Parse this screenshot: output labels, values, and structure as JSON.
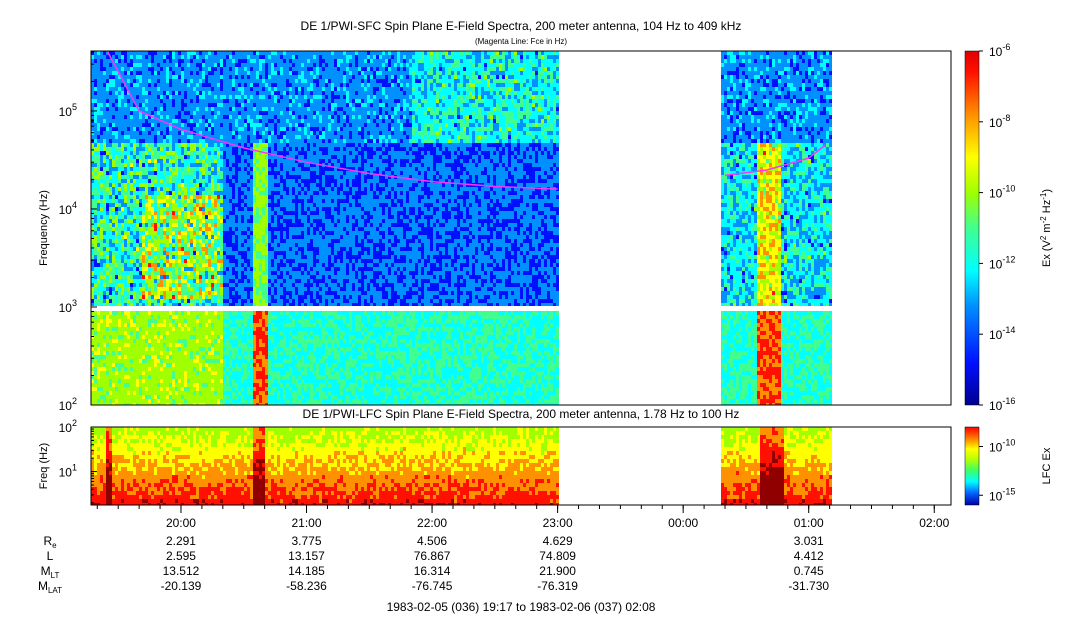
{
  "chart_data": [
    {
      "type": "heatmap",
      "panel": "sfc",
      "title": "DE 1/PWI-SFC  Spin Plane E-Field Spectra, 200 meter antenna, 104 Hz to 409 kHz",
      "subtitle": "(Magenta Line: Fce in Hz)",
      "ylabel": "Frequency (Hz)",
      "yscale": "log",
      "ylim": [
        100,
        409000
      ],
      "yticks": [
        {
          "value": 100,
          "base": "10",
          "exp": "2"
        },
        {
          "value": 1000,
          "base": "10",
          "exp": "3"
        },
        {
          "value": 10000,
          "base": "10",
          "exp": "4"
        },
        {
          "value": 100000,
          "base": "10",
          "exp": "5"
        }
      ],
      "colorbar": {
        "label_prefix": "Ex (V",
        "label_sup1": "2",
        "label_mid": " m",
        "label_sup2": "-2",
        "label_mid2": " Hz",
        "label_sup3": "-1",
        "label_suffix": ")",
        "scale": "log",
        "range": [
          1e-16,
          1e-06
        ],
        "ticks": [
          {
            "value": 1e-16,
            "base": "10",
            "exp": "-16"
          },
          {
            "value": 1e-14,
            "base": "10",
            "exp": "-14"
          },
          {
            "value": 1e-12,
            "base": "10",
            "exp": "-12"
          },
          {
            "value": 1e-10,
            "base": "10",
            "exp": "-10"
          },
          {
            "value": 1e-08,
            "base": "10",
            "exp": "-8"
          },
          {
            "value": 1e-06,
            "base": "10",
            "exp": "-6"
          }
        ]
      },
      "data_gaps": [
        {
          "start": "23:00",
          "end": "00:18"
        },
        {
          "start": "01:10",
          "end": "02:08"
        }
      ],
      "fce_line": {
        "color": "#ff33ff",
        "segments": [
          [
            [
              "19:25",
              400000
            ],
            [
              "19:40",
              100000
            ],
            [
              "20:00",
              65000
            ],
            [
              "20:30",
              42000
            ],
            [
              "21:00",
              30000
            ],
            [
              "21:30",
              23000
            ],
            [
              "22:00",
              19000
            ],
            [
              "22:30",
              17000
            ],
            [
              "23:00",
              16000
            ]
          ],
          [
            [
              "00:20",
              22000
            ],
            [
              "00:40",
              25000
            ],
            [
              "01:00",
              33000
            ],
            [
              "01:08",
              45000
            ]
          ]
        ]
      }
    },
    {
      "type": "heatmap",
      "panel": "lfc",
      "title": "DE 1/PWI-LFC  Spin Plane E-Field Spectra, 200 meter antenna, 1.78 Hz to 100 Hz",
      "ylabel": "Freq (Hz)",
      "yscale": "log",
      "ylim": [
        1.78,
        100
      ],
      "yticks": [
        {
          "value": 10,
          "base": "10",
          "exp": "1"
        },
        {
          "value": 100,
          "base": "10",
          "exp": "2"
        }
      ],
      "colorbar": {
        "label": "LFC Ex",
        "scale": "log",
        "range": [
          1e-16,
          1e-08
        ],
        "ticks": [
          {
            "value": 1e-15,
            "base": "10",
            "exp": "-15"
          },
          {
            "value": 1e-10,
            "base": "10",
            "exp": "-10"
          }
        ]
      },
      "data_gaps": [
        {
          "start": "23:00",
          "end": "00:18"
        },
        {
          "start": "01:10",
          "end": "02:08"
        }
      ]
    }
  ],
  "time_axis": {
    "start": "1983-02-05 19:17",
    "end": "1983-02-06 02:08",
    "ticks": [
      "20:00",
      "21:00",
      "22:00",
      "23:00",
      "00:00",
      "01:00",
      "02:00"
    ]
  },
  "ephemeris": {
    "rows": [
      {
        "label": "R",
        "sub": "e",
        "values": [
          "2.291",
          "3.775",
          "4.506",
          "4.629",
          "",
          "3.031",
          ""
        ]
      },
      {
        "label": "L",
        "sub": "",
        "values": [
          "2.595",
          "13.157",
          "76.867",
          "74.809",
          "",
          "4.412",
          ""
        ]
      },
      {
        "label": "M",
        "sub": "LT",
        "values": [
          "13.512",
          "14.185",
          "16.314",
          "21.900",
          "",
          "0.745",
          ""
        ]
      },
      {
        "label": "M",
        "sub": "LAT",
        "values": [
          "-20.139",
          "-58.236",
          "-76.745",
          "-76.319",
          "",
          "-31.730",
          ""
        ]
      }
    ]
  },
  "footer": "1983-02-05 (036) 19:17 to 1983-02-06 (037) 02:08",
  "colors": {
    "palette": [
      "#000090",
      "#0010ff",
      "#0090ff",
      "#00ffff",
      "#40ff90",
      "#a0ff00",
      "#ffff00",
      "#ff9000",
      "#ff1000",
      "#900000"
    ],
    "fce": "#ff33ff"
  }
}
